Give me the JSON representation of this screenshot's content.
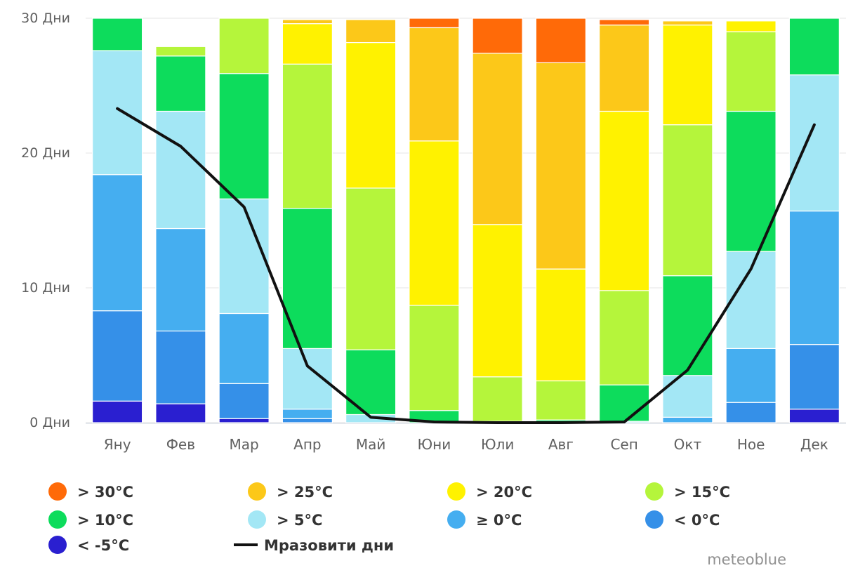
{
  "chart_data": {
    "type": "bar",
    "stacked": true,
    "categories": [
      "Яну",
      "Фев",
      "Мар",
      "Апр",
      "Май",
      "Юни",
      "Юли",
      "Авг",
      "Сеп",
      "Окт",
      "Ное",
      "Дек"
    ],
    "ylim": [
      0,
      30
    ],
    "yticks": [
      {
        "value": 0,
        "label": "0 Дни"
      },
      {
        "value": 10,
        "label": "10 Дни"
      },
      {
        "value": 20,
        "label": "20 Дни"
      },
      {
        "value": 30,
        "label": "30 Дни"
      }
    ],
    "grid": true,
    "series": [
      {
        "name": "< -5°C",
        "color": "#2a1fd0",
        "values": [
          1.6,
          1.4,
          0.3,
          0,
          0,
          0,
          0,
          0,
          0,
          0,
          0,
          1.0
        ]
      },
      {
        "name": "< 0°C",
        "color": "#3590e8",
        "values": [
          6.7,
          5.4,
          2.6,
          0.3,
          0,
          0,
          0,
          0,
          0,
          0,
          1.5,
          4.8
        ]
      },
      {
        "name": "≥ 0°C",
        "color": "#45aef0",
        "values": [
          10.1,
          7.6,
          5.2,
          0.7,
          0,
          0,
          0,
          0,
          0,
          0.4,
          4.0,
          9.9
        ]
      },
      {
        "name": "> 5°C",
        "color": "#a3e7f5",
        "values": [
          9.2,
          8.7,
          8.5,
          4.5,
          0.6,
          0,
          0,
          0,
          0.1,
          3.1,
          7.2,
          10.1
        ]
      },
      {
        "name": "> 10°C",
        "color": "#0ddc5c",
        "values": [
          2.4,
          4.1,
          9.3,
          10.4,
          4.8,
          0.9,
          0.1,
          0.2,
          2.7,
          7.4,
          10.4,
          4.2
        ]
      },
      {
        "name": "> 15°C",
        "color": "#b5f53b",
        "values": [
          0,
          0.7,
          4.1,
          10.7,
          12.0,
          7.8,
          3.3,
          2.9,
          7.0,
          11.2,
          5.9,
          0
        ]
      },
      {
        "name": "> 20°C",
        "color": "#fff200",
        "values": [
          0,
          0,
          0,
          3.0,
          10.8,
          12.2,
          11.3,
          8.3,
          13.3,
          7.4,
          0.8,
          0
        ]
      },
      {
        "name": "> 25°C",
        "color": "#fcc819",
        "values": [
          0,
          0,
          0,
          0.3,
          1.7,
          8.4,
          12.7,
          15.3,
          6.4,
          0.3,
          0,
          0
        ]
      },
      {
        "name": "> 30°C",
        "color": "#ff6a08",
        "values": [
          0,
          0,
          0,
          0,
          0,
          0.7,
          2.6,
          3.3,
          0.4,
          0,
          0,
          0
        ]
      }
    ],
    "line_series": {
      "name": "Мразовити дни",
      "color": "#111111",
      "values": [
        23.3,
        20.5,
        16.0,
        4.2,
        0.4,
        0.05,
        0,
        0,
        0.05,
        3.9,
        11.4,
        22.1
      ]
    },
    "legend": {
      "position": "bottom",
      "items": [
        {
          "label": "> 30°C",
          "color": "#ff6a08",
          "kind": "dot"
        },
        {
          "label": "> 25°C",
          "color": "#fcc819",
          "kind": "dot"
        },
        {
          "label": "> 20°C",
          "color": "#fff200",
          "kind": "dot"
        },
        {
          "label": "> 15°C",
          "color": "#b5f53b",
          "kind": "dot"
        },
        {
          "label": "> 10°C",
          "color": "#0ddc5c",
          "kind": "dot"
        },
        {
          "label": "> 5°C",
          "color": "#a3e7f5",
          "kind": "dot"
        },
        {
          "label": "≥ 0°C",
          "color": "#45aef0",
          "kind": "dot"
        },
        {
          "label": "< 0°C",
          "color": "#3590e8",
          "kind": "dot"
        },
        {
          "label": "< -5°C",
          "color": "#2a1fd0",
          "kind": "dot"
        },
        {
          "label": "Мразовити дни",
          "color": "#111111",
          "kind": "line"
        }
      ]
    },
    "credit": "meteoblue"
  }
}
